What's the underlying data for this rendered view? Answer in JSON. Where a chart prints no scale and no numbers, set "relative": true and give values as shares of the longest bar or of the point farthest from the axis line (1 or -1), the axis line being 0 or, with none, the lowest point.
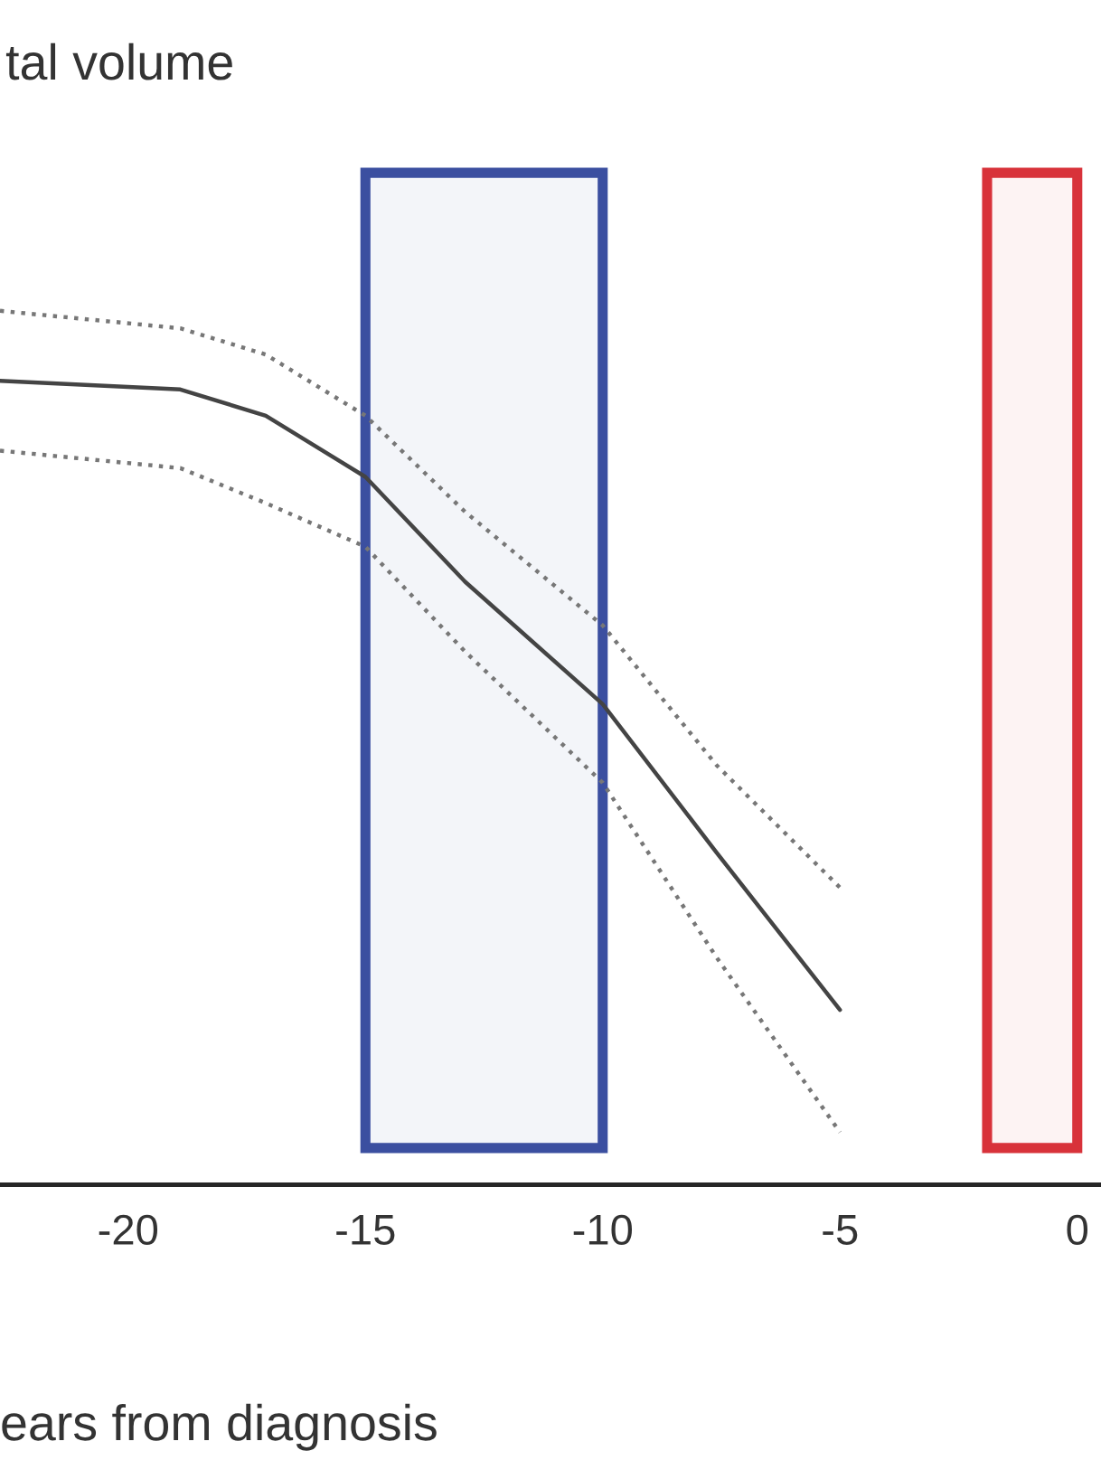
{
  "chart_data": {
    "type": "line",
    "title": "tal volume",
    "xlabel": "ears from diagnosis",
    "relative": true,
    "xlim": [
      -22.7,
      0.5
    ],
    "xticks": [
      -20,
      -15,
      -10,
      -5,
      0
    ],
    "marker": "none",
    "series": [
      {
        "color": "#444444",
        "line_style": "solid",
        "x": [
          -22.7,
          -18.9,
          -17.1,
          -15,
          -12.9,
          -10,
          -7.6,
          -5
        ],
        "values": [
          0.92,
          0.91,
          0.88,
          0.81,
          0.69,
          0.55,
          0.38,
          0.2
        ]
      },
      {
        "color": "#777777",
        "line_style": "dotted",
        "x": [
          -22.7,
          -18.9,
          -17.1,
          -15,
          -12.9,
          -10,
          -7.6,
          -5
        ],
        "values": [
          1.0,
          0.98,
          0.95,
          0.88,
          0.77,
          0.64,
          0.48,
          0.34
        ]
      },
      {
        "color": "#777777",
        "line_style": "dotted",
        "x": [
          -22.7,
          -18.9,
          -17.1,
          -15,
          -12.9,
          -10,
          -7.6,
          -5
        ],
        "values": [
          0.84,
          0.82,
          0.78,
          0.73,
          0.61,
          0.46,
          0.26,
          0.06
        ]
      }
    ],
    "bands": [
      {
        "axis": "x",
        "from": -15,
        "to": -10,
        "color": "#3b4fa0"
      },
      {
        "axis": "x",
        "from": -1.9,
        "to": 0,
        "color": "#d8323a"
      }
    ]
  }
}
